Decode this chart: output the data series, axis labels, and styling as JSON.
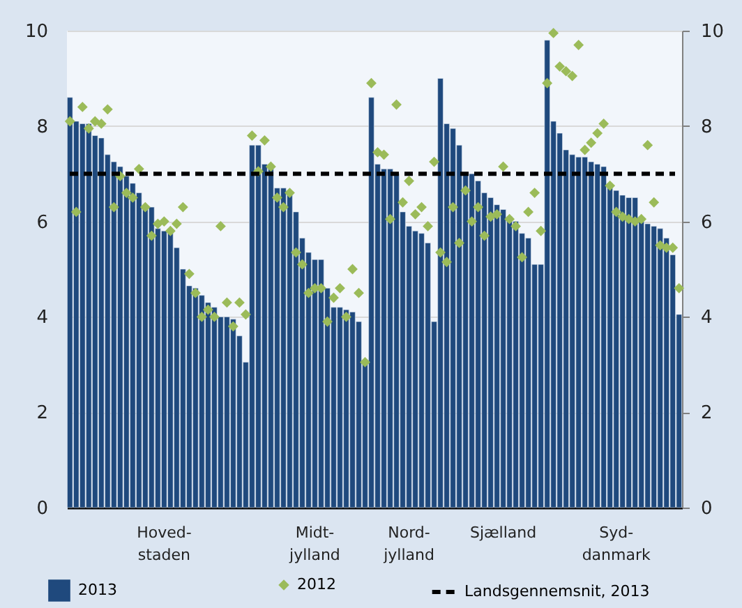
{
  "chart_data": {
    "type": "bar",
    "categories": [
      null,
      null,
      null,
      null,
      null,
      null,
      null,
      null,
      null,
      null,
      null,
      null,
      null,
      null,
      null,
      "Hoved-\nstaden",
      null,
      null,
      null,
      null,
      null,
      null,
      null,
      null,
      null,
      null,
      null,
      null,
      null,
      null,
      null,
      null,
      null,
      null,
      null,
      null,
      null,
      null,
      null,
      "Midt-\njylland",
      null,
      null,
      null,
      null,
      null,
      null,
      null,
      null,
      null,
      null,
      null,
      null,
      null,
      null,
      "Nord-\njylland",
      null,
      null,
      null,
      null,
      null,
      null,
      null,
      null,
      null,
      null,
      null,
      null,
      null,
      null,
      "Sjælland",
      null,
      null,
      null,
      null,
      null,
      null,
      null,
      null,
      null,
      null,
      null,
      null,
      null,
      null,
      null,
      null,
      null,
      "Syd-\ndanmark",
      null,
      null,
      null,
      null,
      null,
      null,
      null,
      null,
      null,
      null
    ],
    "series": [
      {
        "name": "2013",
        "type": "bar",
        "color": "#1f497d",
        "values": [
          8.6,
          8.1,
          8.05,
          8.05,
          7.8,
          7.75,
          7.4,
          7.25,
          7.15,
          6.95,
          6.8,
          6.6,
          6.3,
          6.3,
          5.85,
          5.8,
          5.75,
          5.45,
          5.0,
          4.65,
          4.6,
          4.45,
          4.3,
          4.2,
          4.0,
          4.0,
          3.95,
          3.6,
          3.05,
          7.6,
          7.6,
          7.2,
          7.1,
          6.7,
          6.7,
          6.6,
          6.2,
          5.65,
          5.35,
          5.2,
          5.2,
          4.6,
          4.2,
          4.2,
          4.15,
          4.1,
          3.9,
          3.1,
          8.6,
          7.2,
          7.1,
          7.1,
          7.0,
          6.2,
          5.9,
          5.8,
          5.75,
          5.55,
          3.9,
          9.0,
          8.05,
          7.95,
          7.6,
          7.0,
          7.0,
          6.85,
          6.6,
          6.5,
          6.35,
          6.25,
          6.1,
          6.0,
          5.75,
          5.65,
          5.1,
          5.1,
          9.8,
          8.1,
          7.85,
          7.5,
          7.4,
          7.35,
          7.35,
          7.25,
          7.2,
          7.15,
          6.8,
          6.65,
          6.55,
          6.5,
          6.5,
          6.0,
          5.95,
          5.9,
          5.85,
          5.65,
          5.3,
          4.05
        ]
      },
      {
        "name": "2012",
        "type": "scatter",
        "color": "#9bbb59",
        "marker": "diamond",
        "values": [
          8.1,
          6.2,
          8.4,
          7.95,
          8.1,
          8.05,
          8.35,
          6.3,
          6.95,
          6.6,
          6.5,
          7.1,
          6.3,
          5.7,
          5.95,
          6.0,
          5.8,
          5.95,
          6.3,
          4.9,
          4.5,
          4.0,
          4.15,
          4.0,
          5.9,
          4.3,
          3.8,
          4.3,
          4.05,
          7.8,
          7.05,
          7.7,
          7.15,
          6.5,
          6.3,
          6.6,
          5.35,
          5.1,
          4.5,
          4.6,
          4.6,
          3.9,
          4.4,
          4.6,
          4.0,
          5.0,
          4.5,
          3.05,
          8.9,
          7.45,
          7.4,
          6.05,
          8.45,
          6.4,
          6.85,
          6.15,
          6.3,
          5.9,
          7.25,
          5.35,
          5.15,
          6.3,
          5.55,
          6.65,
          6.0,
          6.3,
          5.7,
          6.1,
          6.15,
          7.15,
          6.05,
          5.9,
          5.25,
          6.2,
          6.6,
          5.8,
          8.9,
          9.95,
          9.25,
          9.15,
          9.05,
          9.7,
          7.5,
          7.65,
          7.85,
          8.05,
          6.75,
          6.2,
          6.1,
          6.05,
          6.0,
          6.05,
          7.6,
          6.4,
          5.5,
          5.45,
          5.45,
          4.6
        ]
      }
    ],
    "ref_lines": [
      {
        "axis": "y",
        "value": 7,
        "label": "Landsgennemsnit, 2013",
        "color": "#000000",
        "line_style": "dashed"
      }
    ],
    "ylim": [
      0,
      10
    ],
    "yticks": [
      0,
      2,
      4,
      6,
      8,
      10
    ],
    "y2lim": [
      0,
      10
    ],
    "y2ticks": [
      0,
      2,
      4,
      6,
      8,
      10
    ],
    "grid": "y",
    "legend": "bottom"
  }
}
